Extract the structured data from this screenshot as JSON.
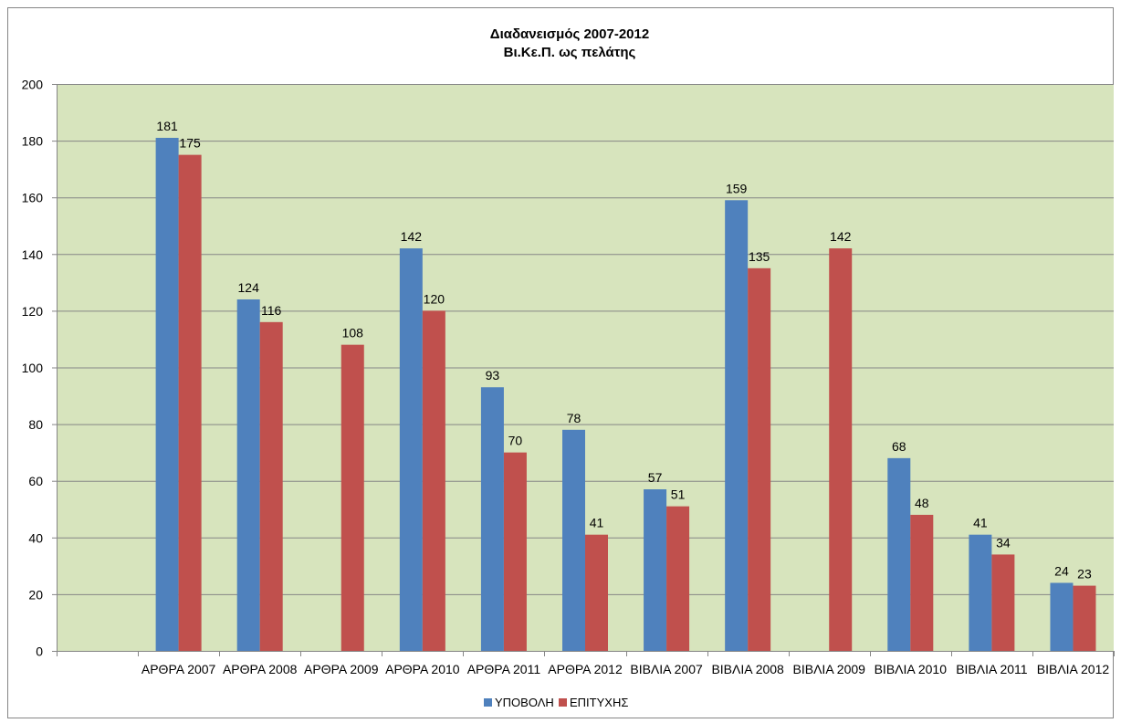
{
  "colors": {
    "plot_background": "#d7e4bd",
    "gridline": "#868686",
    "axis": "#868686",
    "frame": "#868686",
    "text": "#000000"
  },
  "chart_data": {
    "type": "bar",
    "title": "Διαδανεισμός 2007-2012",
    "subtitle": "Βι.Κε.Π. ως πελάτης",
    "xlabel": "",
    "ylabel": "",
    "ylim": [
      0,
      200
    ],
    "yticks": [
      0,
      20,
      40,
      60,
      80,
      100,
      120,
      140,
      160,
      180,
      200
    ],
    "grid": true,
    "legend_position": "bottom",
    "categories": [
      "",
      "ΑΡΘΡΑ 2007",
      "ΑΡΘΡΑ 2008",
      "ΑΡΘΡΑ 2009",
      "ΑΡΘΡΑ 2010",
      "ΑΡΘΡΑ 2011",
      "ΑΡΘΡΑ 2012",
      "ΒΙΒΛΙΑ 2007",
      "ΒΙΒΛΙΑ 2008",
      "ΒΙΒΛΙΑ 2009",
      "ΒΙΒΛΙΑ 2010",
      "ΒΙΒΛΙΑ 2011",
      "ΒΙΒΛΙΑ 2012"
    ],
    "series": [
      {
        "name": "ΥΠΟΒΟΛΗ",
        "color": "#4f81bd",
        "values": [
          null,
          181,
          124,
          null,
          142,
          93,
          78,
          57,
          159,
          null,
          68,
          41,
          24
        ]
      },
      {
        "name": "ΕΠΙΤΥΧΗΣ",
        "color": "#c0504d",
        "values": [
          null,
          175,
          116,
          108,
          120,
          70,
          41,
          51,
          135,
          142,
          48,
          34,
          23
        ]
      }
    ]
  }
}
